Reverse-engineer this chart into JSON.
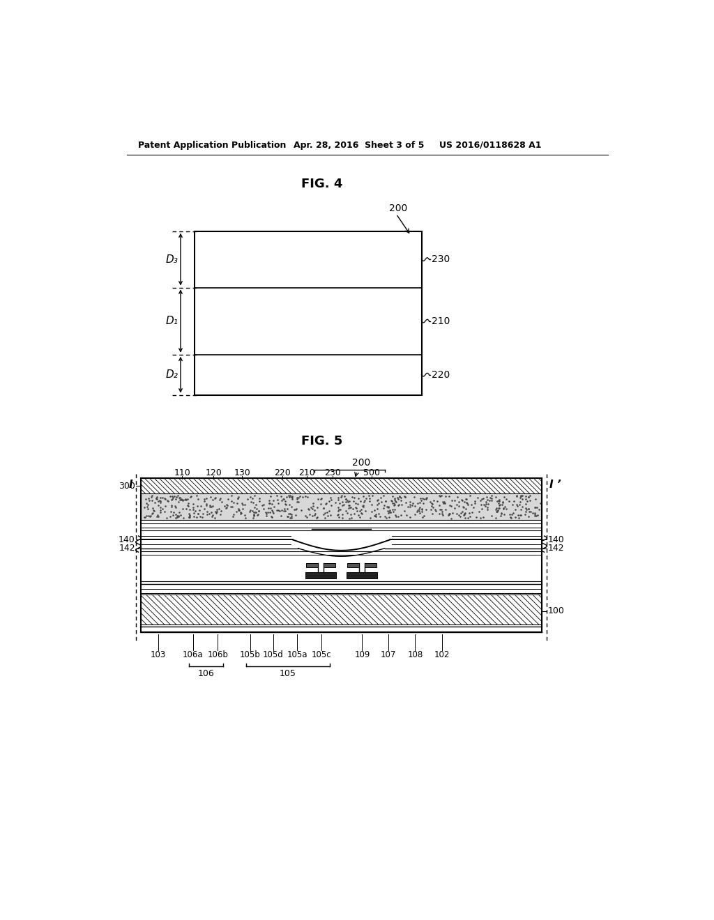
{
  "header_left": "Patent Application Publication",
  "header_mid": "Apr. 28, 2016  Sheet 3 of 5",
  "header_right": "US 2016/0118628 A1",
  "fig4_title": "FIG. 4",
  "fig5_title": "FIG. 5",
  "bg_color": "#ffffff",
  "line_color": "#000000",
  "fig4": {
    "label_200": "200",
    "label_230": "230",
    "label_210": "210",
    "label_220": "220",
    "label_D1": "D₁",
    "label_D2": "D₂",
    "label_D3": "D₃"
  },
  "fig5": {
    "label_I_left": "I",
    "label_I_right": "I ’",
    "label_200": "200",
    "label_300": "300",
    "label_140_left": "140",
    "label_142_left": "142",
    "label_140_right": "140",
    "label_142_right": "142",
    "label_100": "100",
    "labels_top": [
      "110",
      "120",
      "130",
      "220",
      "210",
      "230",
      "500"
    ],
    "labels_bottom": [
      "103",
      "106a",
      "106b",
      "105b",
      "105d",
      "105a",
      "105c",
      "109",
      "107",
      "108",
      "102"
    ],
    "label_106": "106",
    "label_105": "105"
  }
}
